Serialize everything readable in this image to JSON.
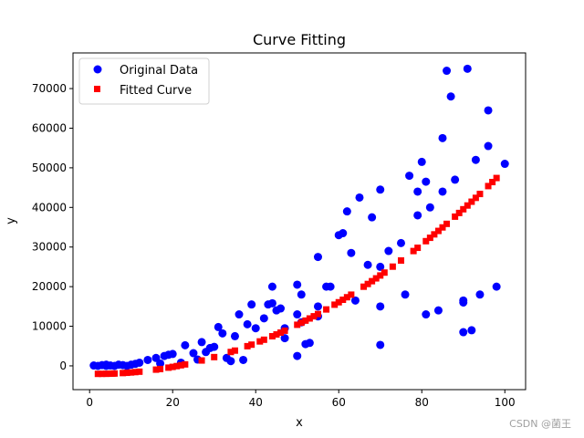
{
  "chart_data": {
    "type": "scatter",
    "title": "Curve Fitting",
    "xlabel": "x",
    "ylabel": "y",
    "xlim": [
      -4,
      105
    ],
    "ylim": [
      -6000,
      79000
    ],
    "xticks": [
      0,
      20,
      40,
      60,
      80,
      100
    ],
    "yticks": [
      0,
      10000,
      20000,
      30000,
      40000,
      50000,
      60000,
      70000
    ],
    "grid": false,
    "legend_position": "top-left",
    "series": [
      {
        "name": "Original Data",
        "marker": "circle",
        "color": "#0000ff",
        "points": [
          [
            1,
            100
          ],
          [
            2,
            0
          ],
          [
            3,
            200
          ],
          [
            4,
            0
          ],
          [
            4,
            300
          ],
          [
            5,
            100
          ],
          [
            6,
            0
          ],
          [
            7,
            300
          ],
          [
            8,
            200
          ],
          [
            9,
            0
          ],
          [
            10,
            300
          ],
          [
            11,
            500
          ],
          [
            12,
            800
          ],
          [
            14,
            1500
          ],
          [
            16,
            2000
          ],
          [
            17,
            600
          ],
          [
            18,
            2500
          ],
          [
            19,
            2800
          ],
          [
            20,
            3000
          ],
          [
            22,
            800
          ],
          [
            23,
            5200
          ],
          [
            25,
            3200
          ],
          [
            26,
            1600
          ],
          [
            27,
            6000
          ],
          [
            28,
            3500
          ],
          [
            29,
            4500
          ],
          [
            30,
            4800
          ],
          [
            31,
            9800
          ],
          [
            32,
            8200
          ],
          [
            33,
            2000
          ],
          [
            34,
            1200
          ],
          [
            35,
            7500
          ],
          [
            36,
            13000
          ],
          [
            37,
            1500
          ],
          [
            38,
            10500
          ],
          [
            39,
            15500
          ],
          [
            40,
            9500
          ],
          [
            42,
            12000
          ],
          [
            43,
            15500
          ],
          [
            44,
            20000
          ],
          [
            44,
            15800
          ],
          [
            45,
            14000
          ],
          [
            46,
            14500
          ],
          [
            47,
            7000
          ],
          [
            47,
            9500
          ],
          [
            50,
            20500
          ],
          [
            50,
            13000
          ],
          [
            50,
            2500
          ],
          [
            51,
            11000
          ],
          [
            51,
            18000
          ],
          [
            52,
            5500
          ],
          [
            53,
            5800
          ],
          [
            55,
            27500
          ],
          [
            55,
            15000
          ],
          [
            55,
            12500
          ],
          [
            57,
            20000
          ],
          [
            58,
            20000
          ],
          [
            60,
            33000
          ],
          [
            61,
            33500
          ],
          [
            62,
            39000
          ],
          [
            63,
            28500
          ],
          [
            64,
            16500
          ],
          [
            65,
            42500
          ],
          [
            67,
            25500
          ],
          [
            68,
            37500
          ],
          [
            70,
            44500
          ],
          [
            70,
            25000
          ],
          [
            70,
            15000
          ],
          [
            70,
            5300
          ],
          [
            72,
            29000
          ],
          [
            75,
            31000
          ],
          [
            76,
            18000
          ],
          [
            77,
            48000
          ],
          [
            79,
            44000
          ],
          [
            79,
            38000
          ],
          [
            80,
            51500
          ],
          [
            81,
            46500
          ],
          [
            81,
            13000
          ],
          [
            82,
            40000
          ],
          [
            84,
            14000
          ],
          [
            85,
            57500
          ],
          [
            85,
            44000
          ],
          [
            86,
            74500
          ],
          [
            87,
            68000
          ],
          [
            88,
            47000
          ],
          [
            90,
            16500
          ],
          [
            90,
            16000
          ],
          [
            90,
            8500
          ],
          [
            91,
            75000
          ],
          [
            92,
            9000
          ],
          [
            93,
            52000
          ],
          [
            94,
            18000
          ],
          [
            96,
            64500
          ],
          [
            96,
            55500
          ],
          [
            98,
            20000
          ],
          [
            100,
            51000
          ]
        ]
      },
      {
        "name": "Fitted Curve",
        "marker": "square",
        "color": "#ff0000",
        "x": [
          2,
          3,
          4,
          4.5,
          5,
          5.5,
          6,
          8,
          9,
          10,
          11,
          12,
          16,
          17,
          19,
          20,
          21,
          22,
          23,
          27,
          30,
          34,
          35,
          38,
          39,
          41,
          42,
          44,
          45,
          46,
          47,
          50,
          51,
          52,
          53,
          54,
          55,
          57,
          59,
          60,
          61,
          62,
          63,
          66,
          67,
          68,
          69,
          70,
          71,
          73,
          75,
          78,
          79,
          81,
          82,
          83,
          84,
          85,
          86,
          88,
          89,
          90,
          91,
          92,
          93,
          94,
          96,
          97,
          98
        ],
        "fit_coefficients": {
          "a": 5.35,
          "b": -20,
          "c": -2000
        }
      }
    ]
  },
  "watermark": "CSDN @菌王"
}
